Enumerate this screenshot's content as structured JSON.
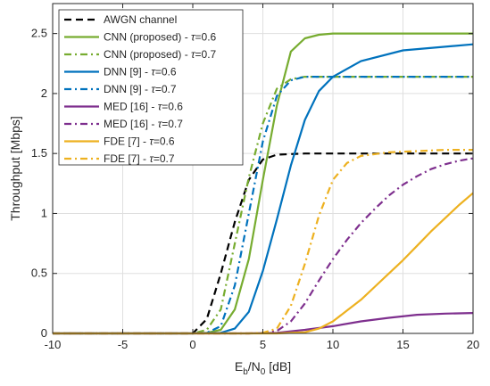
{
  "chart_data": {
    "type": "line",
    "xlabel": "E_b/N_0 [dB]",
    "xlabel_parts": {
      "main1": "E",
      "sub1": "b",
      "main2": "/N",
      "sub2": "0",
      "tail": " [dB]"
    },
    "ylabel": "Throughput [Mbps]",
    "xlim": [
      -10,
      20
    ],
    "ylim": [
      0,
      2.75
    ],
    "xticks": [
      -10,
      -5,
      0,
      5,
      10,
      15,
      20
    ],
    "yticks": [
      0,
      0.5,
      1,
      1.5,
      2,
      2.5
    ],
    "grid": true,
    "legend_position": "top-left",
    "series": [
      {
        "name": "AWGN channel",
        "label_prefix": "AWGN channel",
        "tau": "",
        "color": "#000000",
        "dash": "dashed",
        "x": [
          -10,
          -5,
          0,
          1,
          2,
          3,
          4,
          5,
          6,
          8,
          10,
          15,
          20
        ],
        "y": [
          0,
          0,
          0,
          0.12,
          0.5,
          0.93,
          1.28,
          1.45,
          1.49,
          1.5,
          1.5,
          1.5,
          1.5
        ]
      },
      {
        "name": "CNN (proposed) - τ=0.6",
        "label_prefix": "CNN (proposed) - ",
        "tau": "=0.6",
        "color": "#77ac30",
        "dash": "solid",
        "x": [
          -10,
          -5,
          0,
          1,
          2,
          3,
          4,
          5,
          6,
          7,
          8,
          9,
          10,
          12,
          15,
          20
        ],
        "y": [
          0,
          0,
          0,
          0.005,
          0.03,
          0.2,
          0.62,
          1.28,
          1.9,
          2.35,
          2.46,
          2.49,
          2.5,
          2.5,
          2.5,
          2.5
        ]
      },
      {
        "name": "CNN (proposed) - τ=0.7",
        "label_prefix": "CNN (proposed) - ",
        "tau": "=0.7",
        "color": "#77ac30",
        "dash": "dashdot",
        "x": [
          -10,
          -5,
          0,
          1,
          2,
          3,
          4,
          5,
          6,
          7,
          8,
          10,
          15,
          20
        ],
        "y": [
          0,
          0,
          0,
          0.03,
          0.2,
          0.75,
          1.3,
          1.75,
          2.04,
          2.12,
          2.14,
          2.14,
          2.14,
          2.14
        ]
      },
      {
        "name": "DNN [9] - τ=0.6",
        "label_prefix": "DNN [9] - ",
        "tau": "=0.6",
        "color": "#0072bd",
        "dash": "solid",
        "x": [
          -10,
          -5,
          0,
          2,
          3,
          4,
          5,
          6,
          7,
          8,
          9,
          10,
          12,
          15,
          20
        ],
        "y": [
          0,
          0,
          0,
          0.005,
          0.04,
          0.18,
          0.52,
          0.95,
          1.4,
          1.78,
          2.02,
          2.14,
          2.27,
          2.36,
          2.41
        ]
      },
      {
        "name": "DNN [9] - τ=0.7",
        "label_prefix": "DNN [9] - ",
        "tau": "=0.7",
        "color": "#0072bd",
        "dash": "dashdot",
        "x": [
          -10,
          -5,
          0,
          1,
          2,
          3,
          4,
          5,
          6,
          7,
          8,
          10,
          15,
          20
        ],
        "y": [
          0,
          0,
          0,
          0.005,
          0.06,
          0.4,
          1.0,
          1.6,
          1.98,
          2.11,
          2.14,
          2.14,
          2.14,
          2.14
        ]
      },
      {
        "name": "MED [16] - τ=0.6",
        "label_prefix": "MED [16] - ",
        "tau": "=0.6",
        "color": "#7e2f8e",
        "dash": "solid",
        "x": [
          -10,
          -5,
          0,
          4,
          6,
          8,
          10,
          12,
          14,
          16,
          18,
          20
        ],
        "y": [
          0,
          0,
          0,
          0,
          0.005,
          0.03,
          0.06,
          0.1,
          0.13,
          0.155,
          0.165,
          0.17
        ]
      },
      {
        "name": "MED [16] - τ=0.7",
        "label_prefix": "MED [16] - ",
        "tau": "=0.7",
        "color": "#7e2f8e",
        "dash": "dashdot",
        "x": [
          -10,
          -5,
          0,
          4,
          5,
          6,
          7,
          8,
          9,
          10,
          11,
          12,
          13,
          14,
          15,
          16,
          17,
          18,
          19,
          20
        ],
        "y": [
          0,
          0,
          0,
          0,
          0.005,
          0.02,
          0.1,
          0.25,
          0.44,
          0.62,
          0.78,
          0.92,
          1.04,
          1.15,
          1.24,
          1.31,
          1.37,
          1.41,
          1.44,
          1.46
        ]
      },
      {
        "name": "FDE [7] - τ=0.6",
        "label_prefix": "FDE [7] - ",
        "tau": "=0.6",
        "color": "#edb120",
        "dash": "solid",
        "x": [
          -10,
          -5,
          0,
          4,
          6,
          8,
          9,
          10,
          11,
          12,
          13,
          14,
          15,
          16,
          17,
          18,
          19,
          20
        ],
        "y": [
          0,
          0,
          0,
          0,
          0,
          0.01,
          0.04,
          0.1,
          0.19,
          0.28,
          0.39,
          0.5,
          0.61,
          0.73,
          0.85,
          0.96,
          1.07,
          1.17
        ]
      },
      {
        "name": "FDE [7] - τ=0.7",
        "label_prefix": "FDE [7] - ",
        "tau": "=0.7",
        "color": "#edb120",
        "dash": "dashdot",
        "x": [
          -10,
          -5,
          0,
          4,
          5,
          6,
          7,
          8,
          9,
          10,
          11,
          12,
          14,
          16,
          18,
          20
        ],
        "y": [
          0,
          0,
          0,
          0,
          0.005,
          0.04,
          0.23,
          0.58,
          0.98,
          1.28,
          1.42,
          1.48,
          1.51,
          1.52,
          1.53,
          1.53
        ]
      }
    ]
  }
}
